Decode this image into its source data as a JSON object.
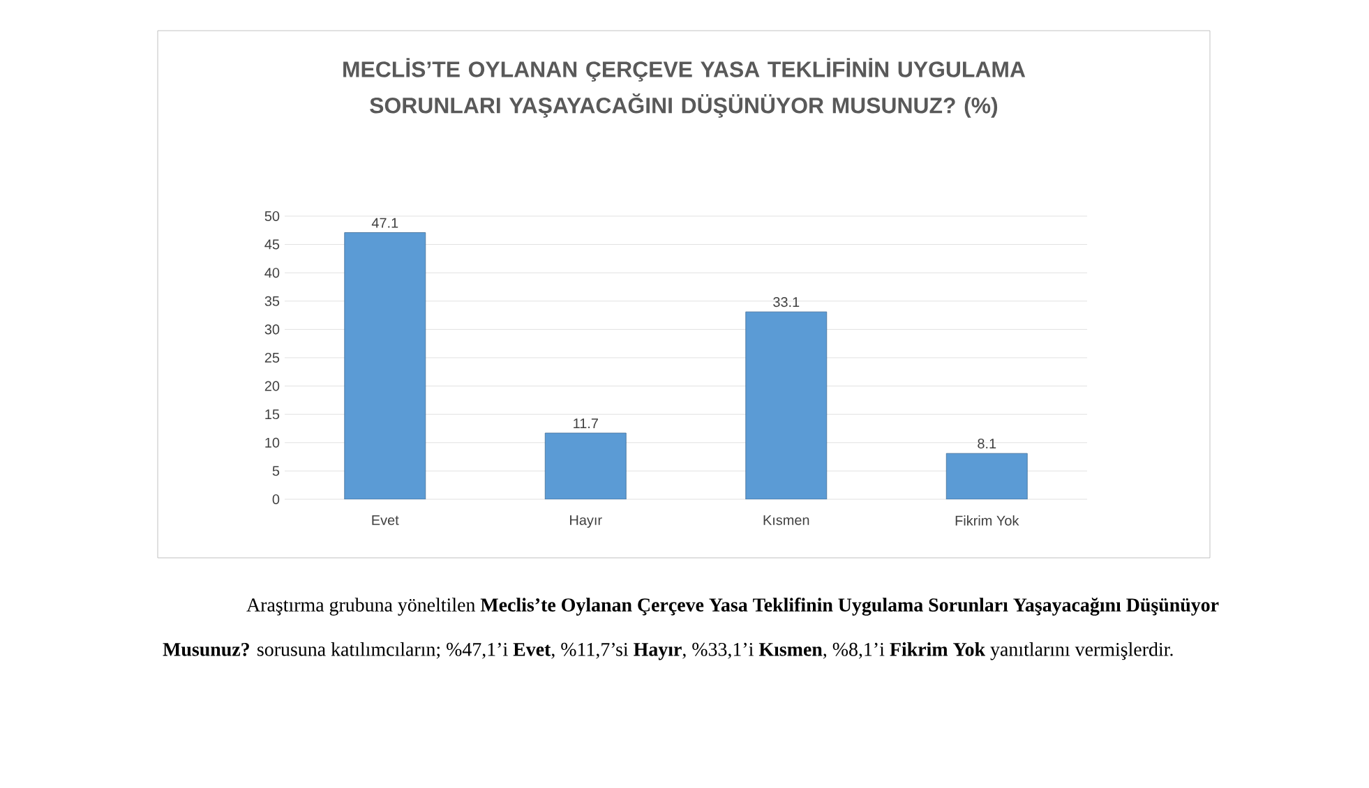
{
  "chart_data": {
    "type": "bar",
    "title": "MECLİS’TE OYLANAN ÇERÇEVE YASA TEKLİFİNİN UYGULAMA SORUNLARI YAŞAYACAĞINI DÜŞÜNÜYOR MUSUNUZ? (%)",
    "categories": [
      "Evet",
      "Hayır",
      "Kısmen",
      "Fikrim Yok"
    ],
    "values": [
      47.1,
      11.7,
      33.1,
      8.1
    ],
    "color": "#5b9bd5",
    "ylim": [
      0,
      50
    ],
    "yticks": [
      0,
      5,
      10,
      15,
      20,
      25,
      30,
      35,
      40,
      45,
      50
    ],
    "grid": "y",
    "data_labels": true,
    "annotations": [
      "Araştırma grubuna yöneltilen **Meclis’te Oylanan Çerçeve Yasa Teklifinin Uygulama Sorunları Yaşayacağını Düşünüyor Musunuz?** sorusuna katılımcıların; %47,1’i **Evet**, %11,7’si **Hayır**, %33,1’i **Kısmen**, %8,1’i **Fikrim Yok** yanıtlarını vermişlerdir."
    ]
  }
}
